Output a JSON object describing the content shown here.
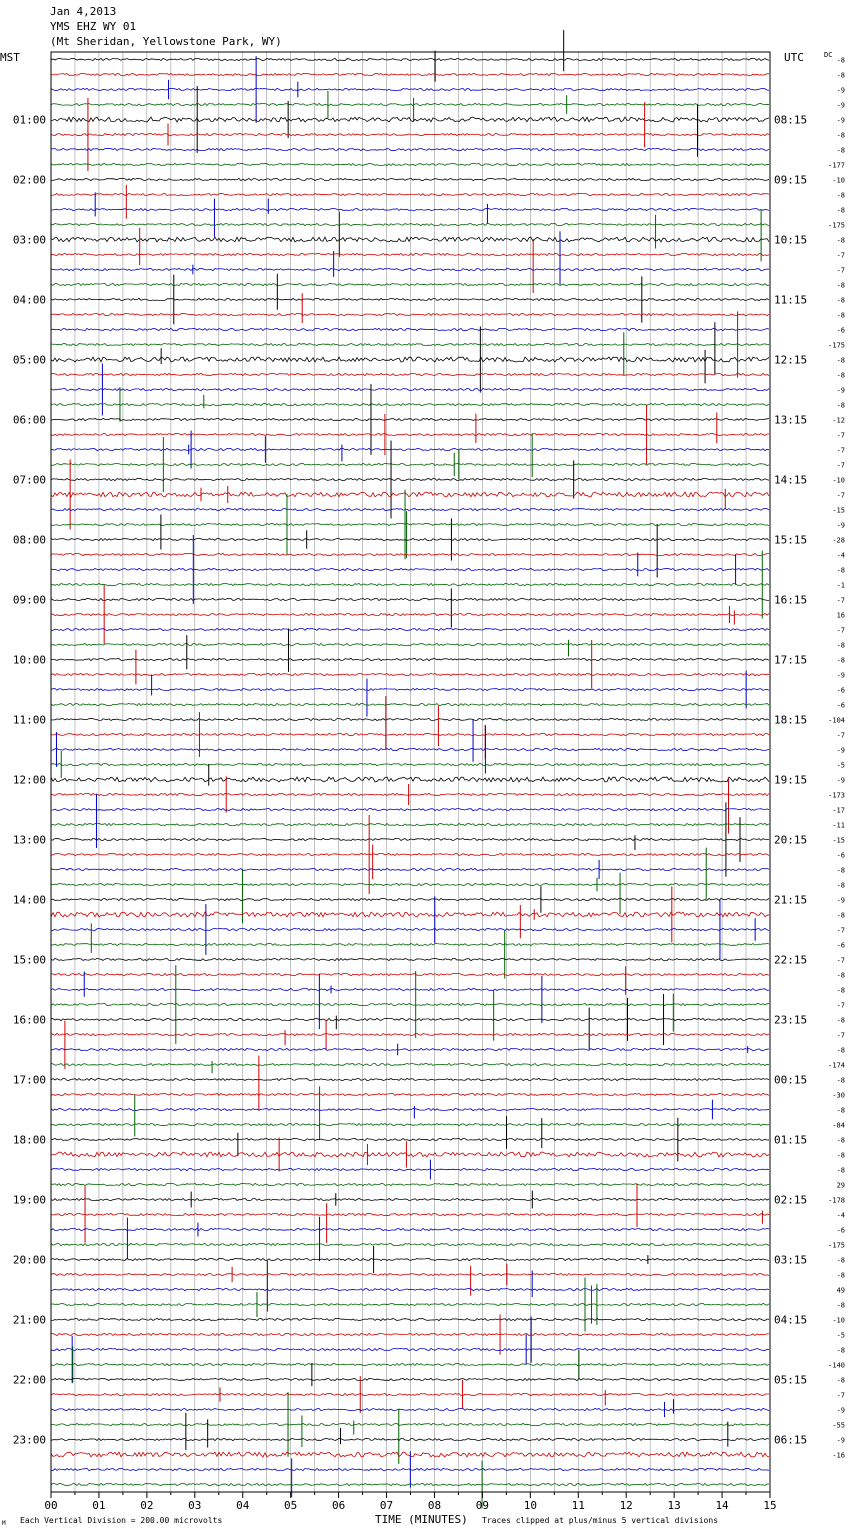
{
  "header": {
    "date": "Jan 4,2013",
    "station": "YMS EHZ WY 01",
    "location": "(Mt Sheridan, Yellowstone Park, WY)"
  },
  "footer": {
    "scale": "Each Vertical Division =  200.00 microvolts",
    "xlabel": "TIME (MINUTES)",
    "clip_note": "Traces clipped at plus/minus 5 vertical divisions",
    "corner_mark": "M"
  },
  "chart_data": {
    "type": "line",
    "title": "",
    "xlabel": "TIME (MINUTES)",
    "xlim": [
      0,
      15
    ],
    "x_ticks": [
      "00",
      "01",
      "02",
      "03",
      "04",
      "05",
      "06",
      "07",
      "08",
      "09",
      "10",
      "11",
      "12",
      "13",
      "14",
      "15"
    ],
    "left_axis_label": "MST",
    "right_axis_label": "UTC",
    "dc_label": "DC",
    "left_hour_labels": [
      "01:00",
      "02:00",
      "03:00",
      "04:00",
      "05:00",
      "06:00",
      "07:00",
      "08:00",
      "09:00",
      "10:00",
      "11:00",
      "12:00",
      "13:00",
      "14:00",
      "15:00",
      "16:00",
      "17:00",
      "18:00",
      "19:00",
      "20:00",
      "21:00",
      "22:00",
      "23:00"
    ],
    "right_hour_labels": [
      "08:15",
      "09:15",
      "10:15",
      "11:15",
      "12:15",
      "13:15",
      "14:15",
      "15:15",
      "16:15",
      "17:15",
      "18:15",
      "19:15",
      "20:15",
      "21:15",
      "22:15",
      "23:15",
      "00:15",
      "01:15",
      "02:15",
      "03:15",
      "04:15",
      "05:15",
      "06:15"
    ],
    "trace_colors": [
      "#000000",
      "#d00000",
      "#0000c8",
      "#006400"
    ],
    "traces_per_hour": 4,
    "trace_count": 96,
    "dc_offsets": [
      "-8",
      "-8",
      "-9",
      "-9",
      "-9",
      "-8",
      "-8",
      "-177",
      "-10",
      "-8",
      "-8",
      "-175",
      "-8",
      "-7",
      "-7",
      "-8",
      "-8",
      "-8",
      "-6",
      "-175",
      "-8",
      "-8",
      "-9",
      "-8",
      "-12",
      "-7",
      "-7",
      "-7",
      "-10",
      "-7",
      "-15",
      "-9",
      "-28",
      "-4",
      "-8",
      "-1",
      "-7",
      "16",
      "-7",
      "-8",
      "-8",
      "-9",
      "-6",
      "-6",
      "-104",
      "-7",
      "-9",
      "-5",
      "-9",
      "-173",
      "-17",
      "-11",
      "-15",
      "-6",
      "-8",
      "-8",
      "-9",
      "-8",
      "-7",
      "-6",
      "-7",
      "-8",
      "-8",
      "-7",
      "-8",
      "-7",
      "-8",
      "-174",
      "-8",
      "-30",
      "-8",
      "-84",
      "-8",
      "-8",
      "-8",
      "29",
      "-178",
      "-4",
      "-6",
      "-175",
      "-8",
      "-8",
      "49",
      "-8",
      "-10",
      "-5",
      "-8",
      "-140",
      "-8",
      "-7",
      "-9",
      "-55",
      "-9",
      "-16"
    ],
    "grid": true
  }
}
